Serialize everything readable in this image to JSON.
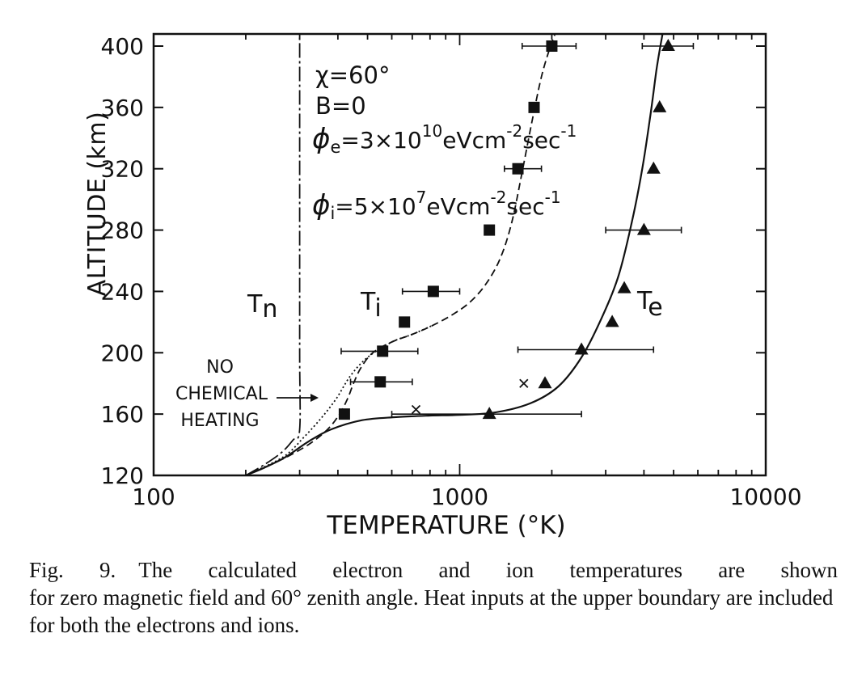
{
  "chart_data": {
    "type": "scatter",
    "xlabel": "TEMPERATURE (°K)",
    "ylabel": "ALTITUDE (km)",
    "xscale": "log",
    "xlim": [
      100,
      10000
    ],
    "ylim": [
      120,
      410
    ],
    "xticks": [
      100,
      1000,
      10000
    ],
    "xtick_labels": [
      "100",
      "1000",
      "10000"
    ],
    "yticks": [
      120,
      160,
      200,
      240,
      280,
      320,
      360,
      400
    ],
    "ytick_labels": [
      "120",
      "160",
      "200",
      "240",
      "280",
      "320",
      "360",
      "400"
    ],
    "grid": false,
    "series": [
      {
        "name": "Tn",
        "style": "dash-dot",
        "points": [
          [
            200,
            120
          ],
          [
            230,
            127
          ],
          [
            262,
            135
          ],
          [
            285,
            143
          ],
          [
            300,
            150
          ],
          [
            300,
            200
          ],
          [
            300,
            300
          ],
          [
            300,
            410
          ]
        ]
      },
      {
        "name": "Ti",
        "style": "dashed",
        "points": [
          [
            200,
            120
          ],
          [
            260,
            130
          ],
          [
            320,
            140
          ],
          [
            370,
            150
          ],
          [
            405,
            160
          ],
          [
            430,
            170
          ],
          [
            450,
            180
          ],
          [
            475,
            190
          ],
          [
            520,
            200
          ],
          [
            600,
            207
          ],
          [
            700,
            212
          ],
          [
            820,
            218
          ],
          [
            950,
            225
          ],
          [
            1080,
            233
          ],
          [
            1220,
            245
          ],
          [
            1360,
            262
          ],
          [
            1480,
            285
          ],
          [
            1590,
            315
          ],
          [
            1720,
            350
          ],
          [
            1850,
            380
          ],
          [
            1980,
            400
          ],
          [
            2050,
            410
          ]
        ]
      },
      {
        "name": "Ti (no chemical heating)",
        "style": "dotted",
        "points": [
          [
            200,
            120
          ],
          [
            265,
            132
          ],
          [
            310,
            145
          ],
          [
            355,
            158
          ],
          [
            395,
            170
          ],
          [
            440,
            185
          ],
          [
            500,
            197
          ],
          [
            600,
            207
          ],
          [
            700,
            212
          ],
          [
            820,
            218
          ]
        ]
      },
      {
        "name": "Te",
        "style": "solid",
        "points": [
          [
            200,
            120
          ],
          [
            230,
            125
          ],
          [
            270,
            132
          ],
          [
            320,
            142
          ],
          [
            380,
            150
          ],
          [
            480,
            156
          ],
          [
            620,
            158
          ],
          [
            800,
            159
          ],
          [
            1000,
            159.5
          ],
          [
            1300,
            161
          ],
          [
            1700,
            167
          ],
          [
            2100,
            178
          ],
          [
            2500,
            197
          ],
          [
            2900,
            222
          ],
          [
            3300,
            250
          ],
          [
            3650,
            285
          ],
          [
            3950,
            320
          ],
          [
            4200,
            355
          ],
          [
            4400,
            385
          ],
          [
            4600,
            410
          ]
        ]
      },
      {
        "name": "Ti data",
        "marker": "square",
        "points": [
          [
            2000,
            400,
            1600,
            2400
          ],
          [
            1750,
            360,
            null,
            null
          ],
          [
            1550,
            320,
            1400,
            1850
          ],
          [
            1250,
            280,
            null,
            null
          ],
          [
            820,
            240,
            650,
            1000
          ],
          [
            660,
            220,
            null,
            null
          ],
          [
            560,
            201,
            410,
            730
          ],
          [
            550,
            181,
            440,
            700
          ],
          [
            420,
            160,
            null,
            null
          ]
        ]
      },
      {
        "name": "Te data",
        "marker": "triangle",
        "points": [
          [
            4800,
            400,
            3950,
            5800
          ],
          [
            4500,
            360,
            null,
            null
          ],
          [
            4300,
            320,
            null,
            null
          ],
          [
            4000,
            280,
            3000,
            5300
          ],
          [
            3450,
            242,
            null,
            null
          ],
          [
            3150,
            220,
            null,
            null
          ],
          [
            2500,
            202,
            1550,
            4300
          ],
          [
            1900,
            180,
            null,
            null
          ],
          [
            1250,
            160,
            600,
            2500
          ]
        ]
      },
      {
        "name": "x data",
        "marker": "x",
        "points": [
          [
            720,
            163
          ],
          [
            1620,
            180
          ]
        ]
      }
    ],
    "annotations": {
      "params": {
        "chi": "χ=60°",
        "b": "B=0",
        "phi_e_base": "ϕ",
        "phi_e_sub": "e",
        "phi_e_pre": "=3×10",
        "phi_e_exp": "10",
        "phi_e_unit": "eVcm",
        "phi_e_unit_exp": "-2",
        "phi_e_sec": "sec",
        "phi_e_sec_exp": "-1",
        "phi_i_base": "ϕ",
        "phi_i_sub": "i",
        "phi_i_pre": "=5×10",
        "phi_i_exp": "7",
        "phi_i_unit": "eVcm",
        "phi_i_unit_exp": "-2",
        "phi_i_sec": "sec",
        "phi_i_sec_exp": "-1"
      },
      "tn_label": {
        "main": "T",
        "sub": "n"
      },
      "ti_label": {
        "main": "T",
        "sub": "i"
      },
      "te_label": {
        "main": "T",
        "sub": "e"
      },
      "note": [
        "NO",
        "CHEMICAL",
        "HEATING"
      ]
    }
  },
  "caption": {
    "label": "Fig. 9.",
    "line1": "The calculated electron and ion temperatures are shown",
    "rest": "for zero magnetic field and 60° zenith angle. Heat inputs at the upper boundary are included for both the electrons and ions."
  }
}
